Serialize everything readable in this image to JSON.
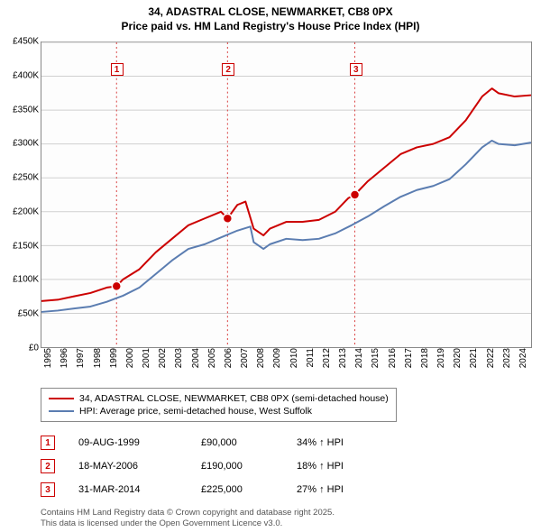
{
  "title": {
    "line1": "34, ADASTRAL CLOSE, NEWMARKET, CB8 0PX",
    "line2": "Price paid vs. HM Land Registry's House Price Index (HPI)"
  },
  "chart": {
    "type": "line",
    "background_color": "#fdfdfd",
    "grid_color": "#d0d0d0",
    "border_color": "#888888",
    "ylim": [
      0,
      450000
    ],
    "ytick_step": 50000,
    "yticks": [
      "£0",
      "£50K",
      "£100K",
      "£150K",
      "£200K",
      "£250K",
      "£300K",
      "£350K",
      "£400K",
      "£450K"
    ],
    "xlim": [
      1995,
      2025
    ],
    "xticks": [
      "1995",
      "1996",
      "1997",
      "1998",
      "1999",
      "2000",
      "2001",
      "2002",
      "2003",
      "2004",
      "2005",
      "2006",
      "2007",
      "2008",
      "2009",
      "2010",
      "2011",
      "2012",
      "2013",
      "2014",
      "2015",
      "2016",
      "2017",
      "2018",
      "2019",
      "2020",
      "2021",
      "2022",
      "2023",
      "2024"
    ],
    "series": [
      {
        "name": "34, ADASTRAL CLOSE, NEWMARKET, CB8 0PX (semi-detached house)",
        "color": "#cc0000",
        "line_width": 2,
        "data": [
          [
            1995,
            68000
          ],
          [
            1996,
            70000
          ],
          [
            1997,
            75000
          ],
          [
            1998,
            80000
          ],
          [
            1999,
            88000
          ],
          [
            1999.6,
            90000
          ],
          [
            2000,
            100000
          ],
          [
            2001,
            115000
          ],
          [
            2002,
            140000
          ],
          [
            2003,
            160000
          ],
          [
            2004,
            180000
          ],
          [
            2005,
            190000
          ],
          [
            2006,
            200000
          ],
          [
            2006.4,
            190000
          ],
          [
            2007,
            210000
          ],
          [
            2007.5,
            215000
          ],
          [
            2008,
            175000
          ],
          [
            2008.6,
            165000
          ],
          [
            2009,
            175000
          ],
          [
            2010,
            185000
          ],
          [
            2011,
            185000
          ],
          [
            2012,
            188000
          ],
          [
            2013,
            200000
          ],
          [
            2013.8,
            220000
          ],
          [
            2014.2,
            225000
          ],
          [
            2015,
            245000
          ],
          [
            2016,
            265000
          ],
          [
            2017,
            285000
          ],
          [
            2018,
            295000
          ],
          [
            2019,
            300000
          ],
          [
            2020,
            310000
          ],
          [
            2021,
            335000
          ],
          [
            2022,
            370000
          ],
          [
            2022.6,
            382000
          ],
          [
            2023,
            375000
          ],
          [
            2024,
            370000
          ],
          [
            2025,
            372000
          ]
        ]
      },
      {
        "name": "HPI: Average price, semi-detached house, West Suffolk",
        "color": "#5b7db1",
        "line_width": 2,
        "data": [
          [
            1995,
            52000
          ],
          [
            1996,
            54000
          ],
          [
            1997,
            57000
          ],
          [
            1998,
            60000
          ],
          [
            1999,
            67000
          ],
          [
            2000,
            76000
          ],
          [
            2001,
            88000
          ],
          [
            2002,
            108000
          ],
          [
            2003,
            128000
          ],
          [
            2004,
            145000
          ],
          [
            2005,
            152000
          ],
          [
            2006,
            162000
          ],
          [
            2007,
            172000
          ],
          [
            2007.8,
            178000
          ],
          [
            2008,
            155000
          ],
          [
            2008.6,
            145000
          ],
          [
            2009,
            152000
          ],
          [
            2010,
            160000
          ],
          [
            2011,
            158000
          ],
          [
            2012,
            160000
          ],
          [
            2013,
            168000
          ],
          [
            2014,
            180000
          ],
          [
            2015,
            193000
          ],
          [
            2016,
            208000
          ],
          [
            2017,
            222000
          ],
          [
            2018,
            232000
          ],
          [
            2019,
            238000
          ],
          [
            2020,
            248000
          ],
          [
            2021,
            270000
          ],
          [
            2022,
            295000
          ],
          [
            2022.6,
            305000
          ],
          [
            2023,
            300000
          ],
          [
            2024,
            298000
          ],
          [
            2025,
            302000
          ]
        ]
      }
    ],
    "markers": [
      {
        "n": "1",
        "x": 1999.6,
        "y": 90000,
        "box_y": 410000
      },
      {
        "n": "2",
        "x": 2006.4,
        "y": 190000,
        "box_y": 410000
      },
      {
        "n": "3",
        "x": 2014.2,
        "y": 225000,
        "box_y": 410000
      }
    ],
    "marker_line_color": "#d94040",
    "marker_box_border": "#cc0000",
    "marker_dot_colors": [
      "#cc0000",
      "#cc0000",
      "#cc0000"
    ]
  },
  "legend": {
    "items": [
      {
        "color": "#cc0000",
        "label": "34, ADASTRAL CLOSE, NEWMARKET, CB8 0PX (semi-detached house)"
      },
      {
        "color": "#5b7db1",
        "label": "HPI: Average price, semi-detached house, West Suffolk"
      }
    ]
  },
  "transactions": [
    {
      "n": "1",
      "date": "09-AUG-1999",
      "price": "£90,000",
      "hpi": "34% ↑ HPI"
    },
    {
      "n": "2",
      "date": "18-MAY-2006",
      "price": "£190,000",
      "hpi": "18% ↑ HPI"
    },
    {
      "n": "3",
      "date": "31-MAR-2014",
      "price": "£225,000",
      "hpi": "27% ↑ HPI"
    }
  ],
  "footer": {
    "line1": "Contains HM Land Registry data © Crown copyright and database right 2025.",
    "line2": "This data is licensed under the Open Government Licence v3.0."
  }
}
